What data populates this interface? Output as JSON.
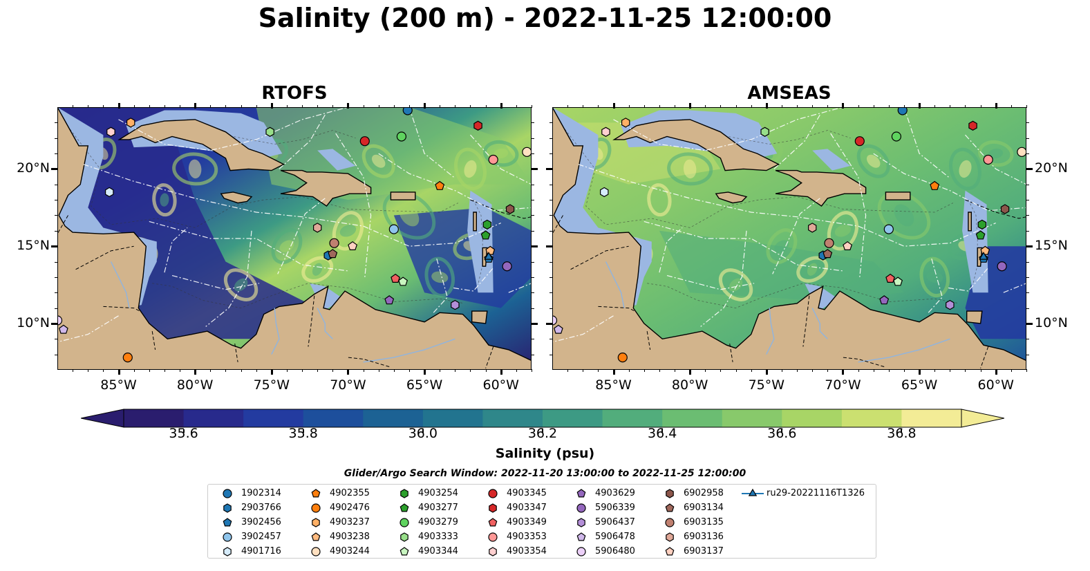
{
  "title": "Salinity (200 m) - 2022-11-25 12:00:00",
  "panels": [
    {
      "title": "RTOFS",
      "field": "fresh"
    },
    {
      "title": "AMSEAS",
      "field": "salty"
    }
  ],
  "map_extent": {
    "lon": [
      -89,
      -58
    ],
    "lat": [
      7,
      24
    ]
  },
  "axes": {
    "x_ticks": [
      {
        "value": -85,
        "label": "85°W"
      },
      {
        "value": -80,
        "label": "80°W"
      },
      {
        "value": -75,
        "label": "75°W"
      },
      {
        "value": -70,
        "label": "70°W"
      },
      {
        "value": -65,
        "label": "65°W"
      },
      {
        "value": -60,
        "label": "60°W"
      }
    ],
    "y_ticks": [
      {
        "value": 20,
        "label": "20°N"
      },
      {
        "value": 15,
        "label": "15°N"
      },
      {
        "value": 10,
        "label": "10°N"
      }
    ]
  },
  "colorbar": {
    "label": "Salinity (psu)",
    "min": 35.5,
    "max": 36.9,
    "ticks": [
      {
        "value": 35.6,
        "label": "35.6"
      },
      {
        "value": 35.8,
        "label": "35.8"
      },
      {
        "value": 36.0,
        "label": "36.0"
      },
      {
        "value": 36.2,
        "label": "36.2"
      },
      {
        "value": 36.4,
        "label": "36.4"
      },
      {
        "value": 36.6,
        "label": "36.6"
      },
      {
        "value": 36.8,
        "label": "36.8"
      }
    ],
    "colors": [
      "#2a1d6e",
      "#282a8c",
      "#233ba0",
      "#1d4f9c",
      "#1c6294",
      "#22748f",
      "#2f878a",
      "#3d9a84",
      "#52ad7c",
      "#6bbd72",
      "#88c96b",
      "#a8d566",
      "#cbe070",
      "#f3ec96"
    ]
  },
  "search_window": "Glider/Argo Search Window: 2022-11-20 13:00:00 to 2022-11-25 12:00:00",
  "platforms": [
    {
      "id": "1902314",
      "color": "#1f77b4",
      "marker": "circle",
      "lon": -66.1,
      "lat": 23.8
    },
    {
      "id": "2903766",
      "color": "#1f77b4",
      "marker": "hexagon",
      "lon": -71.3,
      "lat": 14.4
    },
    {
      "id": "3902456",
      "color": "#1f77b4",
      "marker": "pentagon",
      "lon": -60.8,
      "lat": 14.2
    },
    {
      "id": "3902457",
      "color": "#8fc5ec",
      "marker": "circle",
      "lon": -67.0,
      "lat": 16.1
    },
    {
      "id": "4901716",
      "color": "#d6ecfb",
      "marker": "hexagon",
      "lon": -85.6,
      "lat": 18.5
    },
    {
      "id": "4902355",
      "color": "#ff7f0e",
      "marker": "pentagon",
      "lon": -64.0,
      "lat": 18.9
    },
    {
      "id": "4902476",
      "color": "#ff7f0e",
      "marker": "circle",
      "lon": -84.4,
      "lat": 7.8
    },
    {
      "id": "4903237",
      "color": "#ffb066",
      "marker": "hexagon",
      "lon": -84.2,
      "lat": 23.0
    },
    {
      "id": "4903238",
      "color": "#ffbb80",
      "marker": "pentagon",
      "lon": -60.7,
      "lat": 14.7
    },
    {
      "id": "4903244",
      "color": "#ffe0c0",
      "marker": "circle",
      "lon": -58.3,
      "lat": 21.1
    },
    {
      "id": "4903254",
      "color": "#2ca02c",
      "marker": "hexagon",
      "lon": -60.9,
      "lat": 16.4
    },
    {
      "id": "4903277",
      "color": "#2ca02c",
      "marker": "pentagon",
      "lon": -61.0,
      "lat": 15.7
    },
    {
      "id": "4903279",
      "color": "#5fd35f",
      "marker": "circle",
      "lon": -66.5,
      "lat": 22.1
    },
    {
      "id": "4903333",
      "color": "#98df8a",
      "marker": "hexagon",
      "lon": -75.1,
      "lat": 22.4
    },
    {
      "id": "4903344",
      "color": "#c8f5c0",
      "marker": "pentagon",
      "lon": -66.4,
      "lat": 12.7
    },
    {
      "id": "4903345",
      "color": "#d62728",
      "marker": "circle",
      "lon": -68.9,
      "lat": 21.8
    },
    {
      "id": "4903347",
      "color": "#d62728",
      "marker": "hexagon",
      "lon": -61.5,
      "lat": 22.8
    },
    {
      "id": "4903349",
      "color": "#f06060",
      "marker": "pentagon",
      "lon": -66.9,
      "lat": 12.9
    },
    {
      "id": "4903353",
      "color": "#ff9896",
      "marker": "circle",
      "lon": -60.5,
      "lat": 20.6
    },
    {
      "id": "4903354",
      "color": "#ffd0d0",
      "marker": "hexagon",
      "lon": -85.5,
      "lat": 22.4
    },
    {
      "id": "4903629",
      "color": "#9467bd",
      "marker": "pentagon",
      "lon": -67.3,
      "lat": 11.5
    },
    {
      "id": "5906339",
      "color": "#9467bd",
      "marker": "circle",
      "lon": -59.6,
      "lat": 13.7
    },
    {
      "id": "5906437",
      "color": "#b48fd8",
      "marker": "hexagon",
      "lon": -63.0,
      "lat": 11.2
    },
    {
      "id": "5906478",
      "color": "#d0b8ea",
      "marker": "pentagon",
      "lon": -88.6,
      "lat": 9.6
    },
    {
      "id": "5906480",
      "color": "#ecd0f8",
      "marker": "circle",
      "lon": -89.0,
      "lat": 10.2
    },
    {
      "id": "6902958",
      "color": "#8c564b",
      "marker": "hexagon",
      "lon": -59.4,
      "lat": 17.4
    },
    {
      "id": "6903134",
      "color": "#a0685c",
      "marker": "pentagon",
      "lon": -71.0,
      "lat": 14.5
    },
    {
      "id": "6903135",
      "color": "#c08070",
      "marker": "circle",
      "lon": -70.9,
      "lat": 15.2
    },
    {
      "id": "6903136",
      "color": "#e0a898",
      "marker": "hexagon",
      "lon": -72.0,
      "lat": 16.2
    },
    {
      "id": "6903137",
      "color": "#ffd0c0",
      "marker": "pentagon",
      "lon": -69.7,
      "lat": 15.0
    },
    {
      "id": "ru29-20221116T1326",
      "color": "#1f77b4",
      "marker": "triangle",
      "lon": -60.8,
      "lat": 14.3
    }
  ]
}
